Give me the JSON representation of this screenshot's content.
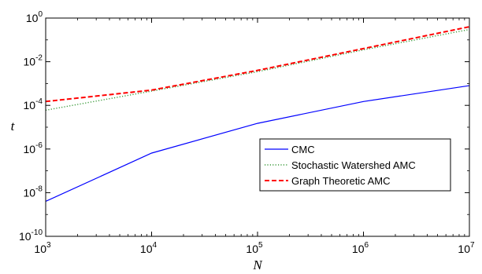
{
  "chart_data": {
    "type": "line",
    "xscale": "log",
    "yscale": "log",
    "xlabel": "N",
    "ylabel": "t",
    "xlim": [
      1000,
      10000000
    ],
    "ylim": [
      1e-10,
      1
    ],
    "x_ticks": [
      {
        "value": 1000,
        "base": "10",
        "exp": "3"
      },
      {
        "value": 10000,
        "base": "10",
        "exp": "4"
      },
      {
        "value": 100000,
        "base": "10",
        "exp": "5"
      },
      {
        "value": 1000000,
        "base": "10",
        "exp": "6"
      },
      {
        "value": 10000000,
        "base": "10",
        "exp": "7"
      }
    ],
    "y_ticks": [
      {
        "value": 1e-10,
        "base": "10",
        "exp": "-10"
      },
      {
        "value": 1e-08,
        "base": "10",
        "exp": "-8"
      },
      {
        "value": 1e-06,
        "base": "10",
        "exp": "-6"
      },
      {
        "value": 0.0001,
        "base": "10",
        "exp": "-4"
      },
      {
        "value": 0.01,
        "base": "10",
        "exp": "-2"
      },
      {
        "value": 1,
        "base": "10",
        "exp": "0"
      }
    ],
    "grid": false,
    "legend_position": "center-right",
    "series": [
      {
        "name": "CMC",
        "color": "#0000ff",
        "style": "solid",
        "x": [
          1000,
          10000,
          100000,
          1000000,
          10000000
        ],
        "y": [
          4e-09,
          6.5e-07,
          1.5e-05,
          0.00015,
          0.0008
        ]
      },
      {
        "name": "Stochastic Watershed AMC",
        "color": "#3a9a3a",
        "style": "dotted",
        "x": [
          1000,
          10000,
          100000,
          1000000,
          10000000
        ],
        "y": [
          6e-05,
          0.00045,
          0.0035,
          0.035,
          0.3
        ]
      },
      {
        "name": "Graph Theoretic AMC",
        "color": "#ff0000",
        "style": "dashed",
        "x": [
          1000,
          10000,
          100000,
          1000000,
          10000000
        ],
        "y": [
          0.00015,
          0.0005,
          0.004,
          0.04,
          0.4
        ]
      }
    ]
  }
}
